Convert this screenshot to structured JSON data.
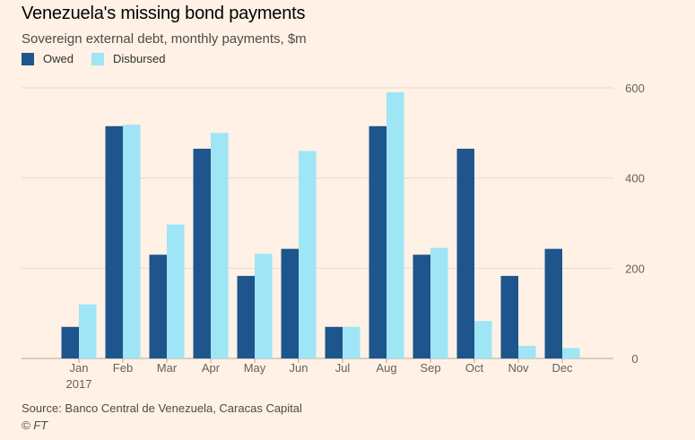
{
  "header": {
    "title": "Venezuela's missing bond payments",
    "subtitle": "Sovereign external debt, monthly payments, $m"
  },
  "footer": {
    "source": "Source: Banco Central de Venezuela, Caracas Capital",
    "credit": "© FT"
  },
  "colors": {
    "owed": "#1e558c",
    "disbursed": "#9ee5f5",
    "grid": "#e6d9ce",
    "axis": "#66605c",
    "background": "#fff1e5"
  },
  "chart_data": {
    "type": "bar",
    "categories": [
      "Jan",
      "Feb",
      "Mar",
      "Apr",
      "May",
      "Jun",
      "Jul",
      "Aug",
      "Sep",
      "Oct",
      "Nov",
      "Dec"
    ],
    "category_sublabel": "2017",
    "series": [
      {
        "name": "Owed",
        "values": [
          70,
          515,
          230,
          465,
          183,
          243,
          70,
          515,
          230,
          465,
          183,
          243
        ]
      },
      {
        "name": "Disbursed",
        "values": [
          120,
          518,
          297,
          500,
          232,
          460,
          70,
          590,
          245,
          83,
          28,
          23
        ]
      }
    ],
    "title": "Venezuela's missing bond payments",
    "subtitle": "Sovereign external debt, monthly payments, $m",
    "xlabel": "",
    "ylabel": "",
    "ylim": [
      0,
      600
    ],
    "yticks": [
      0,
      200,
      400,
      600
    ],
    "y_axis_side": "right",
    "grid": true,
    "legend": "top-left"
  }
}
